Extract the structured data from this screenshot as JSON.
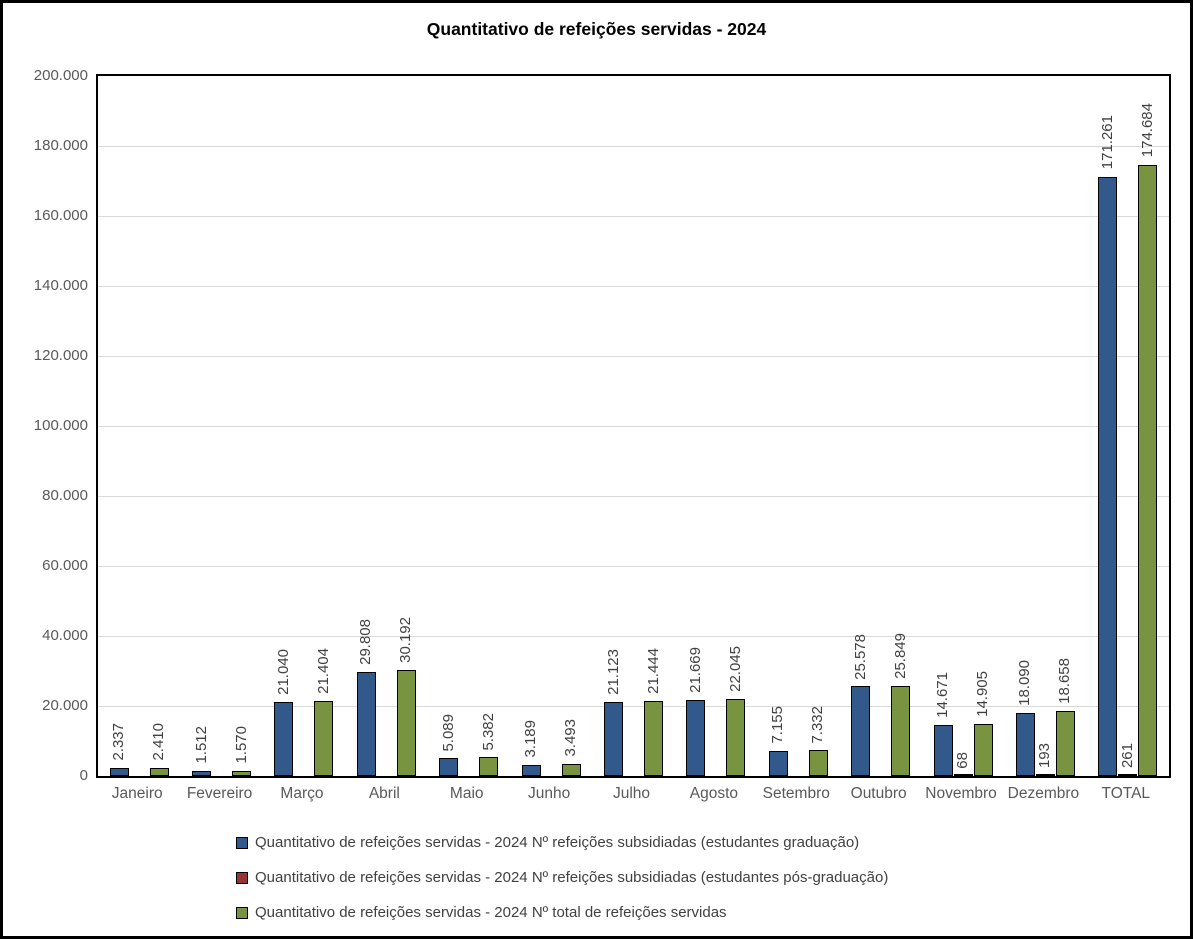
{
  "chart_data": {
    "type": "bar",
    "title": "Quantitativo de refeições servidas - 2024",
    "categories": [
      "Janeiro",
      "Fevereiro",
      "Março",
      "Abril",
      "Maio",
      "Junho",
      "Julho",
      "Agosto",
      "Setembro",
      "Outubro",
      "Novembro",
      "Dezembro",
      "TOTAL"
    ],
    "series": [
      {
        "name": "Quantitativo de refeições servidas - 2024 Nº refeições subsidiadas (estudantes graduação)",
        "color": "#31598c",
        "values": [
          2337,
          1512,
          21040,
          29808,
          5089,
          3189,
          21123,
          21669,
          7155,
          25578,
          14671,
          18090,
          171261
        ],
        "labels": [
          "2.337",
          "1.512",
          "21.040",
          "29.808",
          "5.089",
          "3.189",
          "21.123",
          "21.669",
          "7.155",
          "25.578",
          "14.671",
          "18.090",
          "171.261"
        ]
      },
      {
        "name": "Quantitativo de refeições servidas - 2024 Nº refeições subsidiadas (estudantes pós-graduação)",
        "color": "#943634",
        "values": [
          null,
          null,
          null,
          null,
          null,
          null,
          null,
          null,
          null,
          null,
          68,
          193,
          261
        ],
        "labels": [
          "",
          "",
          "",
          "",
          "",
          "",
          "",
          "",
          "",
          "",
          "68",
          "193",
          "261"
        ]
      },
      {
        "name": "Quantitativo de refeições servidas - 2024 Nº total de refeições servidas",
        "color": "#789441",
        "values": [
          2410,
          1570,
          21404,
          30192,
          5382,
          3493,
          21444,
          22045,
          7332,
          25849,
          14905,
          18658,
          174684
        ],
        "labels": [
          "2.410",
          "1.570",
          "21.404",
          "30.192",
          "5.382",
          "3.493",
          "21.444",
          "22.045",
          "7.332",
          "25.849",
          "14.905",
          "18.658",
          "174.684"
        ]
      }
    ],
    "ylim": [
      0,
      200000
    ],
    "ytick_step": 20000,
    "ytick_labels": [
      "0",
      "20.000",
      "40.000",
      "60.000",
      "80.000",
      "100.000",
      "120.000",
      "140.000",
      "160.000",
      "180.000",
      "200.000"
    ],
    "grid": true,
    "legend_position": "bottom",
    "colors": {
      "gridline": "#d9d9d9",
      "axis_text": "#595959",
      "data_label_text": "#404040",
      "plot_border": "#000000",
      "frame_border": "#000000",
      "background": "#ffffff"
    }
  }
}
